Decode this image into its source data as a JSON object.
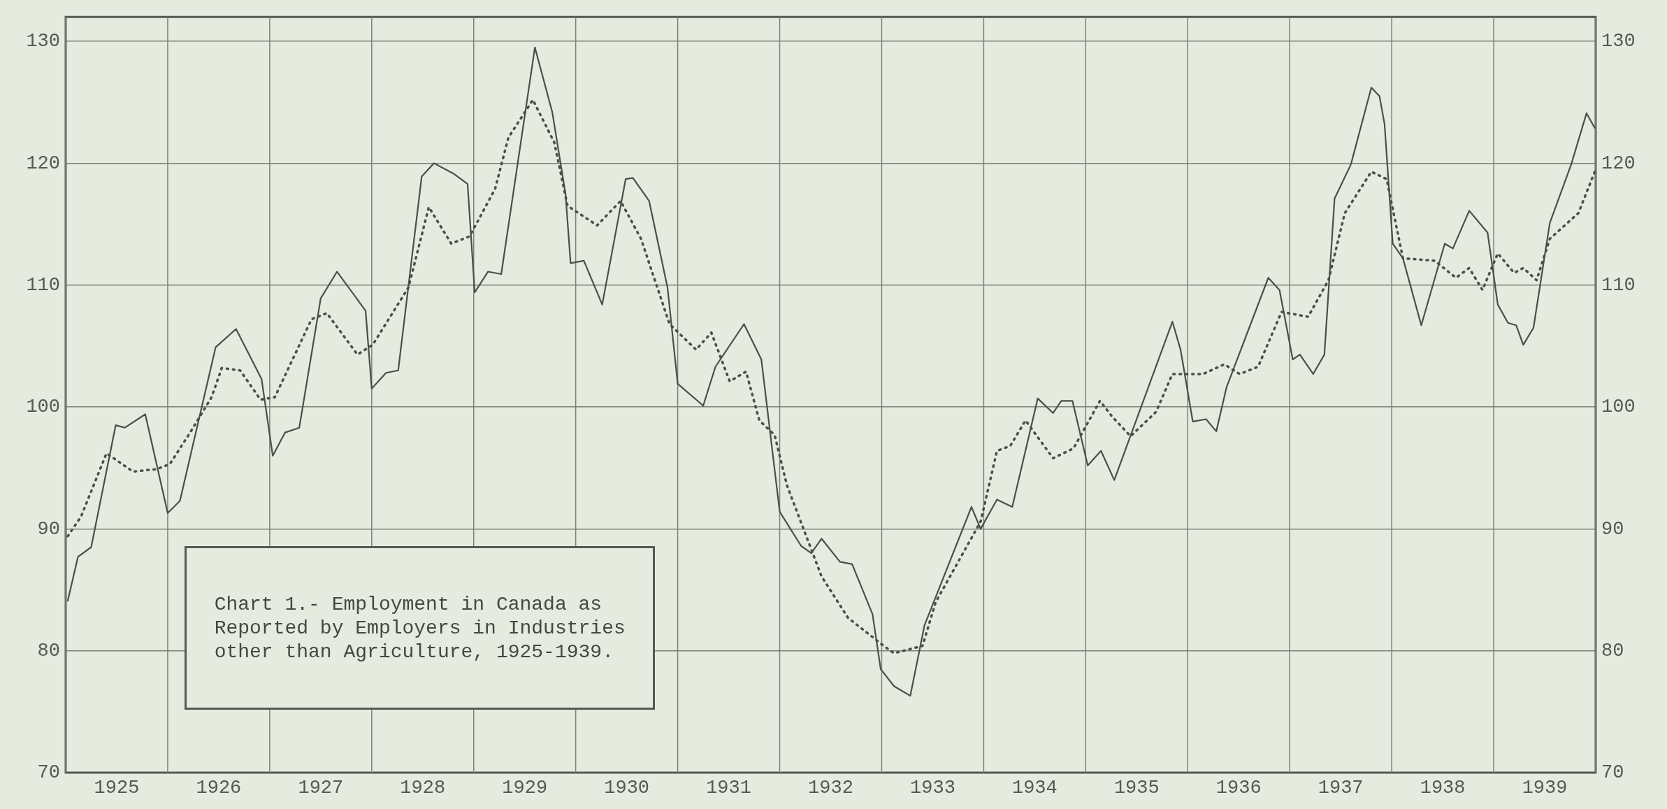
{
  "chart_data": {
    "type": "line",
    "title": "Chart 1.- Employment in Canada as Reported by Employers in Industries other than Agriculture, 1925-1939.",
    "xlim": [
      1925,
      1940
    ],
    "xticks": [
      {
        "value": 1925,
        "label": null
      },
      {
        "value": 1925.5,
        "label": "1925"
      },
      {
        "value": 1926,
        "label": null
      },
      {
        "value": 1926.5,
        "label": "1926"
      },
      {
        "value": 1927,
        "label": null
      },
      {
        "value": 1927.5,
        "label": "1927"
      },
      {
        "value": 1928,
        "label": null
      },
      {
        "value": 1928.5,
        "label": "1928"
      },
      {
        "value": 1929,
        "label": null
      },
      {
        "value": 1929.5,
        "label": "1929"
      },
      {
        "value": 1930,
        "label": null
      },
      {
        "value": 1930.5,
        "label": "1930"
      },
      {
        "value": 1931,
        "label": null
      },
      {
        "value": 1931.5,
        "label": "1931"
      },
      {
        "value": 1932,
        "label": null
      },
      {
        "value": 1932.5,
        "label": "1932"
      },
      {
        "value": 1933,
        "label": null
      },
      {
        "value": 1933.5,
        "label": "1933"
      },
      {
        "value": 1934,
        "label": null
      },
      {
        "value": 1934.5,
        "label": "1934"
      },
      {
        "value": 1935,
        "label": null
      },
      {
        "value": 1935.5,
        "label": "1935"
      },
      {
        "value": 1936,
        "label": null
      },
      {
        "value": 1936.5,
        "label": "1936"
      },
      {
        "value": 1937,
        "label": null
      },
      {
        "value": 1937.5,
        "label": "1937"
      },
      {
        "value": 1938,
        "label": null
      },
      {
        "value": 1938.5,
        "label": "1938"
      },
      {
        "value": 1939,
        "label": null
      },
      {
        "value": 1939.5,
        "label": "1939"
      },
      {
        "value": 1940,
        "label": null
      }
    ],
    "ylim": [
      70,
      132
    ],
    "yticks": [
      70,
      80,
      90,
      100,
      110,
      120,
      130
    ],
    "y2lim": [
      70,
      132
    ],
    "y2ticks": [
      70,
      80,
      90,
      100,
      110,
      120,
      130
    ],
    "grid": true,
    "legend": false,
    "marker": "none",
    "series": [
      {
        "color": "#4a4f48",
        "line_style": "solid",
        "x": [
          1925.02,
          1925.12,
          1925.25,
          1925.49,
          1925.58,
          1925.78,
          1926.0,
          1926.12,
          1926.47,
          1926.67,
          1926.92,
          1927.03,
          1927.15,
          1927.29,
          1927.5,
          1927.66,
          1927.94,
          1928.0,
          1928.14,
          1928.26,
          1928.49,
          1928.61,
          1928.81,
          1928.94,
          1929.01,
          1929.14,
          1929.27,
          1929.6,
          1929.77,
          1929.9,
          1929.95,
          1930.08,
          1930.26,
          1930.49,
          1930.56,
          1930.72,
          1930.9,
          1931.0,
          1931.25,
          1931.37,
          1931.65,
          1931.82,
          1932.0,
          1932.21,
          1932.31,
          1932.41,
          1932.59,
          1932.71,
          1932.91,
          1932.99,
          1933.12,
          1933.28,
          1933.42,
          1933.88,
          1933.97,
          1934.13,
          1934.28,
          1934.53,
          1934.68,
          1934.76,
          1934.87,
          1935.02,
          1935.15,
          1935.28,
          1935.85,
          1935.93,
          1936.05,
          1936.18,
          1936.28,
          1936.38,
          1936.79,
          1936.9,
          1937.03,
          1937.1,
          1937.23,
          1937.34,
          1937.44,
          1937.6,
          1937.8,
          1937.88,
          1937.93,
          1938.01,
          1938.11,
          1938.29,
          1938.52,
          1938.6,
          1938.76,
          1938.94,
          1939.04,
          1939.14,
          1939.22,
          1939.29,
          1939.39,
          1939.55,
          1939.76,
          1939.91,
          1939.99
        ],
        "values": [
          84.1,
          87.7,
          88.5,
          98.5,
          98.3,
          99.4,
          91.3,
          92.3,
          104.9,
          106.4,
          102.3,
          96.0,
          97.9,
          98.3,
          108.9,
          111.1,
          107.9,
          101.5,
          102.8,
          103.0,
          118.9,
          120.0,
          119.1,
          118.3,
          109.4,
          111.1,
          110.9,
          129.5,
          124.2,
          117.5,
          111.8,
          112.0,
          108.4,
          118.7,
          118.8,
          116.9,
          109.8,
          101.9,
          100.1,
          103.3,
          106.8,
          103.9,
          91.4,
          88.6,
          88.0,
          89.2,
          87.3,
          87.1,
          83.0,
          78.5,
          77.1,
          76.3,
          82.1,
          91.8,
          90.0,
          92.4,
          91.8,
          100.7,
          99.5,
          100.5,
          100.5,
          95.2,
          96.4,
          94.0,
          107.0,
          104.7,
          98.8,
          99.0,
          98.0,
          101.6,
          110.6,
          109.6,
          103.9,
          104.3,
          102.7,
          104.3,
          117.1,
          119.9,
          126.2,
          125.5,
          123.2,
          113.4,
          112.2,
          106.7,
          113.4,
          113.0,
          116.1,
          114.3,
          108.4,
          106.9,
          106.7,
          105.1,
          106.5,
          115.1,
          119.9,
          124.1,
          122.9
        ]
      },
      {
        "color": "#4a4f48",
        "line_style": "dotted",
        "x": [
          1925.02,
          1925.15,
          1925.4,
          1925.66,
          1925.89,
          1926.02,
          1926.22,
          1926.43,
          1926.53,
          1926.71,
          1926.91,
          1927.05,
          1927.41,
          1927.56,
          1927.86,
          1928.01,
          1928.36,
          1928.56,
          1928.78,
          1928.96,
          1929.21,
          1929.34,
          1929.58,
          1929.79,
          1929.92,
          1930.21,
          1930.44,
          1930.64,
          1930.92,
          1931.18,
          1931.33,
          1931.51,
          1931.67,
          1931.8,
          1931.95,
          1932.07,
          1932.41,
          1932.67,
          1933.02,
          1933.12,
          1933.4,
          1933.53,
          1933.97,
          1934.13,
          1934.26,
          1934.41,
          1934.68,
          1934.88,
          1935.14,
          1935.26,
          1935.44,
          1935.69,
          1935.85,
          1936.15,
          1936.36,
          1936.51,
          1936.69,
          1936.92,
          1937.18,
          1937.38,
          1937.54,
          1937.8,
          1937.95,
          1938.11,
          1938.42,
          1938.63,
          1938.76,
          1938.89,
          1939.04,
          1939.2,
          1939.29,
          1939.42,
          1939.55,
          1939.83,
          1940.0
        ],
        "values": [
          89.4,
          91.0,
          96.2,
          94.7,
          94.9,
          95.3,
          97.9,
          100.8,
          103.2,
          103.0,
          100.6,
          100.8,
          107.2,
          107.7,
          104.3,
          105.1,
          109.8,
          116.4,
          113.4,
          114.0,
          117.9,
          122.1,
          125.2,
          121.7,
          116.5,
          114.9,
          116.9,
          113.8,
          106.8,
          104.7,
          106.1,
          102.1,
          102.9,
          98.9,
          97.7,
          93.6,
          86.1,
          82.7,
          80.4,
          79.8,
          80.4,
          84.0,
          90.6,
          96.4,
          96.8,
          98.9,
          95.8,
          96.6,
          100.5,
          99.2,
          97.6,
          99.6,
          102.7,
          102.7,
          103.5,
          102.7,
          103.3,
          107.8,
          107.4,
          110.4,
          115.9,
          119.3,
          118.7,
          112.2,
          112.0,
          110.6,
          111.4,
          109.6,
          112.6,
          111.0,
          111.4,
          110.4,
          113.8,
          115.9,
          119.5
        ]
      }
    ]
  }
}
